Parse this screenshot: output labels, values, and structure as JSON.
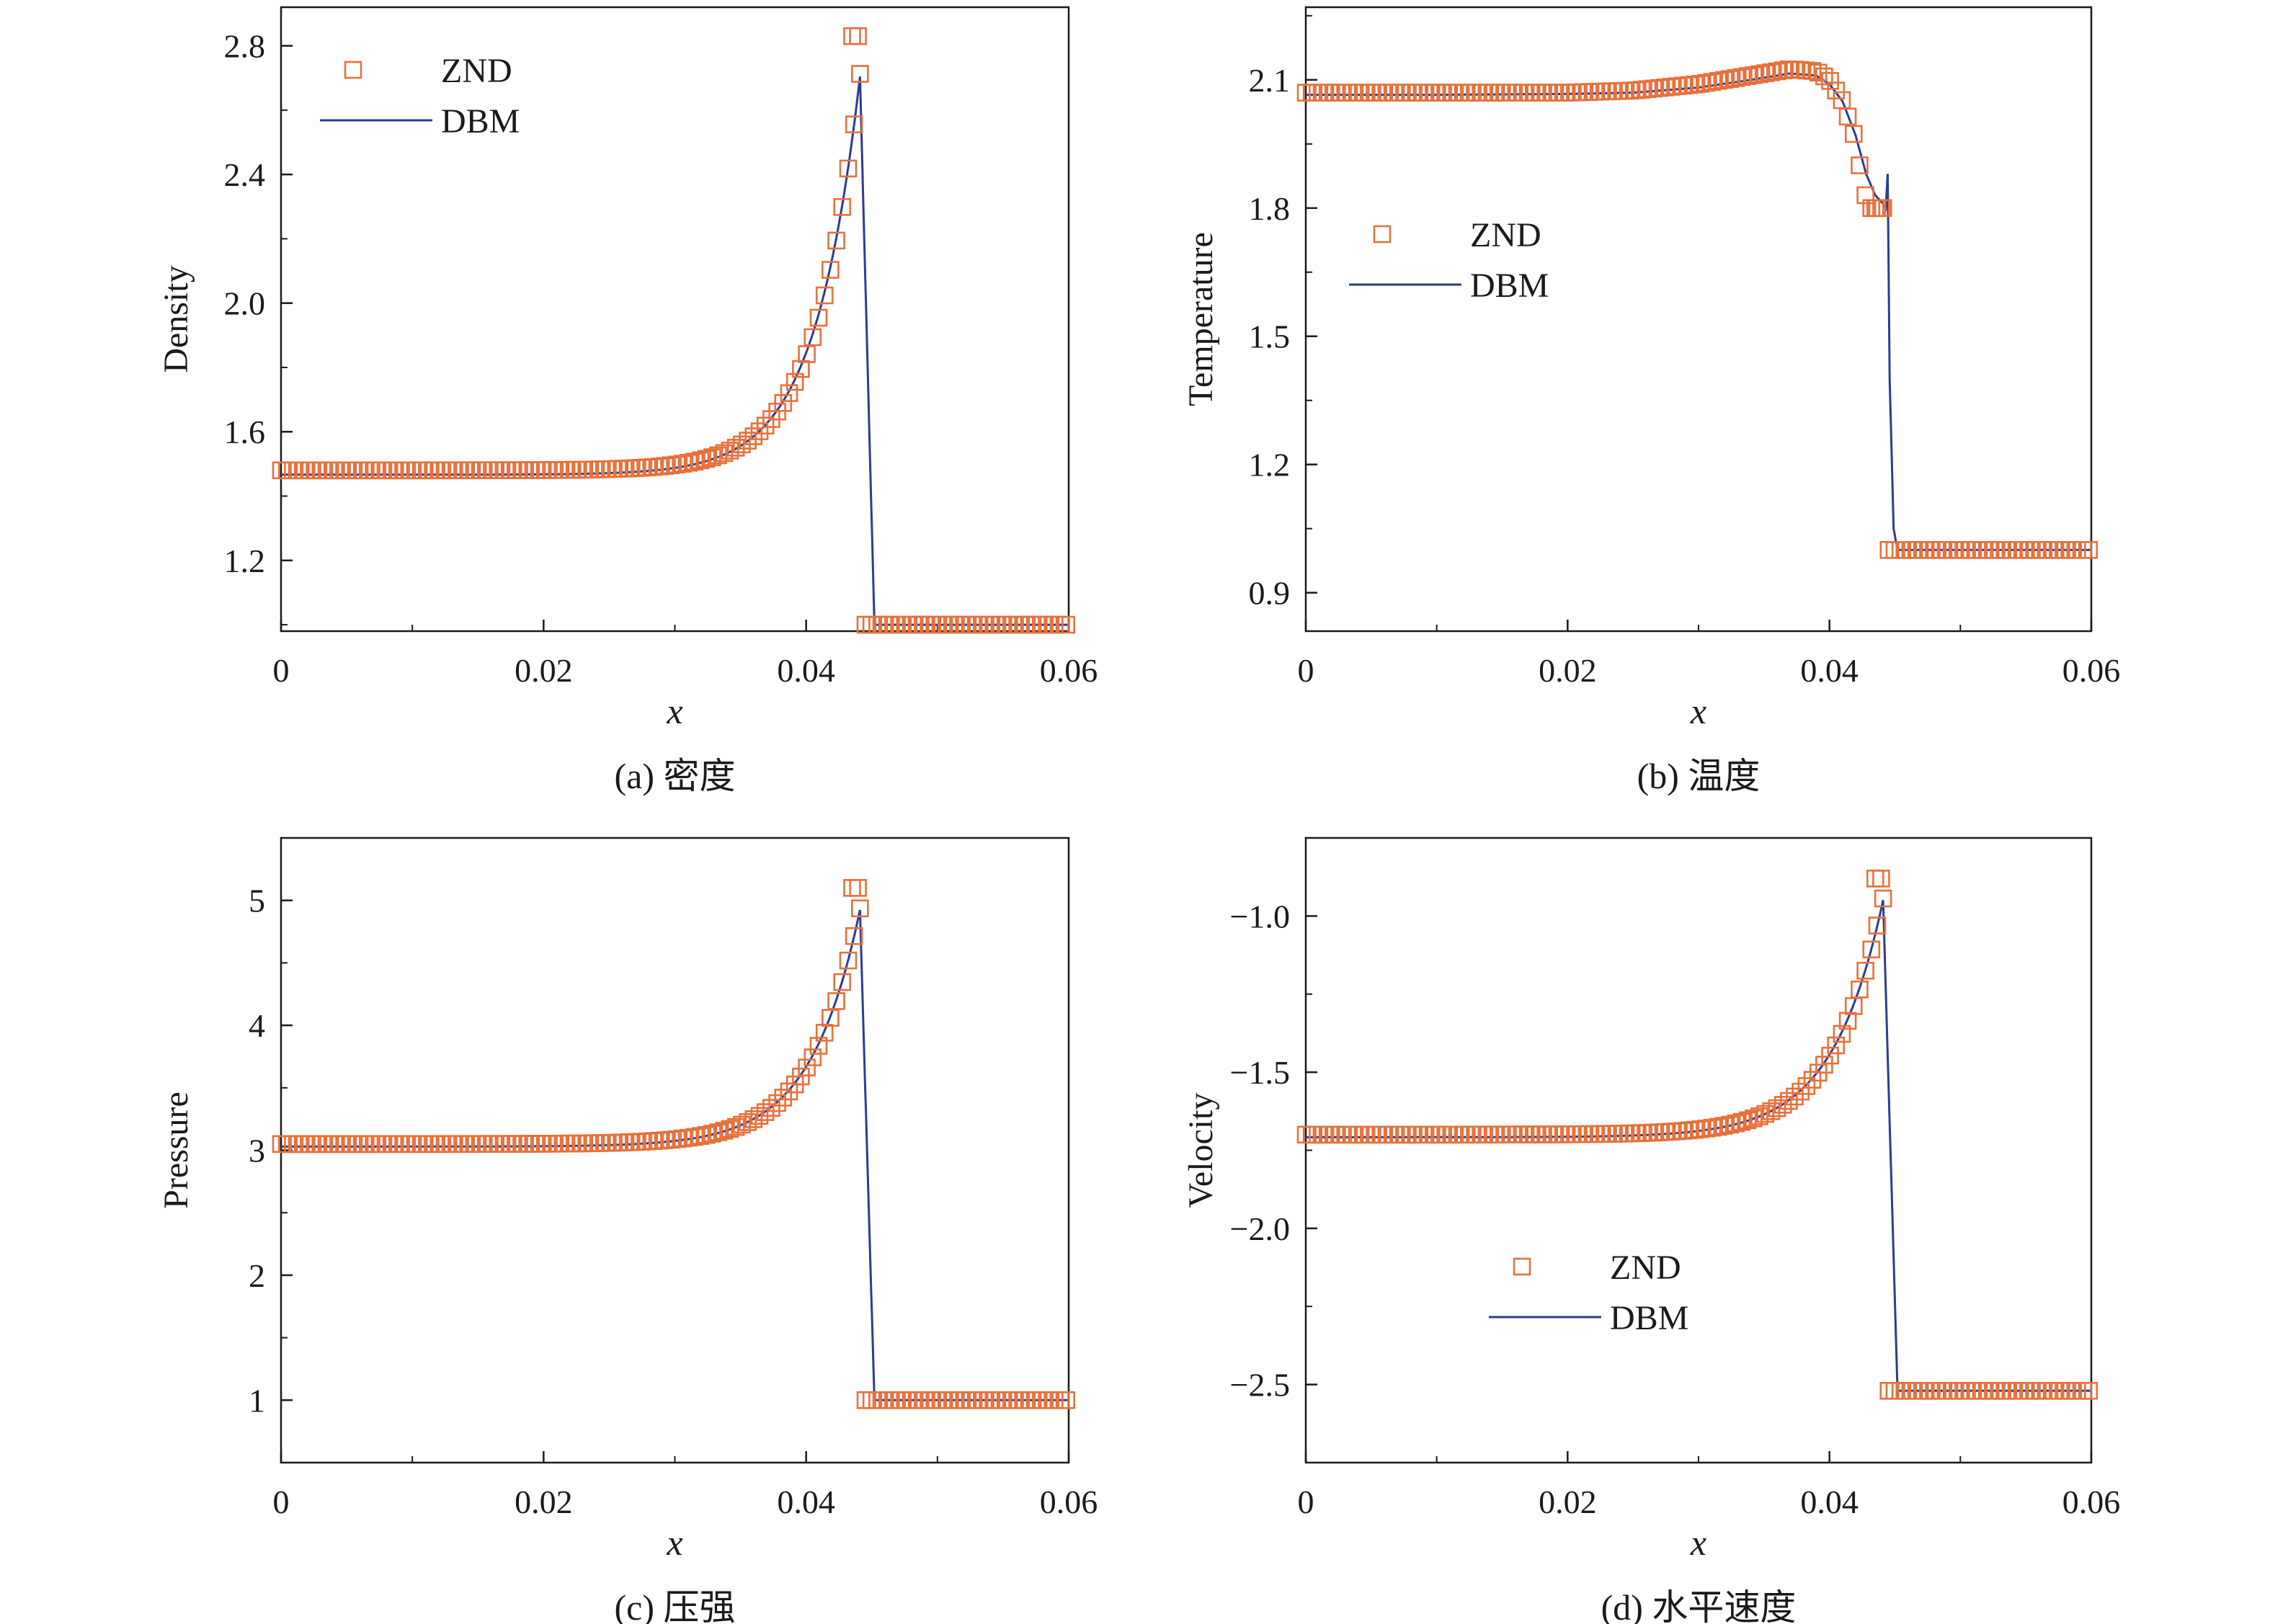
{
  "colors": {
    "znd": "#e8703a",
    "dbm": "#2b3b96",
    "axis": "#1a1a1a"
  },
  "legend": {
    "znd_label": "ZND",
    "dbm_label": "DBM"
  },
  "chart_data": [
    {
      "type": "line",
      "id": "a",
      "caption": "(a) 密度",
      "xlabel": "x",
      "ylabel": "Density",
      "xlim": [
        0,
        0.06
      ],
      "ylim": [
        0.98,
        2.92
      ],
      "xticks": [
        0,
        0.02,
        0.04,
        0.06
      ],
      "xtick_labels": [
        "0",
        "0.02",
        "0.04",
        "0.06"
      ],
      "yticks": [
        1.2,
        1.6,
        2.0,
        2.4,
        2.8
      ],
      "ytick_labels": [
        "1.2",
        "1.6",
        "2.0",
        "2.4",
        "2.8"
      ],
      "legend_position": "top-left",
      "profile": {
        "left": 1.48,
        "peak": 2.83,
        "right": 1.0,
        "front": 0.0444,
        "tau": 0.0033,
        "spike": 0
      },
      "series": [
        {
          "name": "ZND",
          "style": "open-square-markers"
        },
        {
          "name": "DBM",
          "style": "line"
        }
      ]
    },
    {
      "type": "line",
      "id": "b",
      "caption": "(b) 温度",
      "xlabel": "x",
      "ylabel": "Temperature",
      "xlim": [
        0,
        0.06
      ],
      "ylim": [
        0.81,
        2.27
      ],
      "xticks": [
        0,
        0.02,
        0.04,
        0.06
      ],
      "xtick_labels": [
        "0",
        "0.02",
        "0.04",
        "0.06"
      ],
      "yticks": [
        0.9,
        1.2,
        1.5,
        1.8,
        2.1
      ],
      "ytick_labels": [
        "0.9",
        "1.2",
        "1.5",
        "1.8",
        "2.1"
      ],
      "legend_position": "center-left",
      "znd_points": [
        [
          0,
          2.07
        ],
        [
          0.01,
          2.07
        ],
        [
          0.02,
          2.07
        ],
        [
          0.025,
          2.075
        ],
        [
          0.03,
          2.09
        ],
        [
          0.034,
          2.11
        ],
        [
          0.037,
          2.125
        ],
        [
          0.039,
          2.12
        ],
        [
          0.04,
          2.1
        ],
        [
          0.041,
          2.05
        ],
        [
          0.042,
          1.96
        ],
        [
          0.0425,
          1.86
        ],
        [
          0.043,
          1.8
        ],
        [
          0.0444,
          1.8
        ]
      ],
      "dbm_points": [
        [
          0,
          2.065
        ],
        [
          0.01,
          2.065
        ],
        [
          0.02,
          2.067
        ],
        [
          0.025,
          2.07
        ],
        [
          0.03,
          2.082
        ],
        [
          0.034,
          2.1
        ],
        [
          0.037,
          2.115
        ],
        [
          0.039,
          2.11
        ],
        [
          0.04,
          2.09
        ],
        [
          0.041,
          2.05
        ],
        [
          0.042,
          1.97
        ],
        [
          0.0428,
          1.88
        ],
        [
          0.0435,
          1.83
        ],
        [
          0.0441,
          1.81
        ],
        [
          0.0443,
          1.8
        ],
        [
          0.04445,
          1.88
        ],
        [
          0.0446,
          1.4
        ],
        [
          0.0449,
          1.05
        ],
        [
          0.0452,
          1.0
        ],
        [
          0.06,
          1.0
        ]
      ],
      "right_value": 1.0,
      "front": 0.0444,
      "series": [
        {
          "name": "ZND",
          "style": "open-square-markers"
        },
        {
          "name": "DBM",
          "style": "line"
        }
      ]
    },
    {
      "type": "line",
      "id": "c",
      "caption": "(c) 压强",
      "xlabel": "x",
      "ylabel": "Pressure",
      "xlim": [
        0,
        0.06
      ],
      "ylim": [
        0.5,
        5.5
      ],
      "xticks": [
        0,
        0.02,
        0.04,
        0.06
      ],
      "xtick_labels": [
        "0",
        "0.02",
        "0.04",
        "0.06"
      ],
      "yticks": [
        1,
        2,
        3,
        4,
        5
      ],
      "ytick_labels": [
        "1",
        "2",
        "3",
        "4",
        "5"
      ],
      "legend_position": "none",
      "profile": {
        "left": 3.05,
        "peak": 5.1,
        "right": 1.0,
        "front": 0.0444,
        "tau": 0.0036,
        "spike": 0
      },
      "series": [
        {
          "name": "ZND",
          "style": "open-square-markers"
        },
        {
          "name": "DBM",
          "style": "line"
        }
      ]
    },
    {
      "type": "line",
      "id": "d",
      "caption": "(d) 水平速度",
      "xlabel": "x",
      "ylabel": "Velocity",
      "xlim": [
        0,
        0.06
      ],
      "ylim": [
        -2.75,
        -0.75
      ],
      "xticks": [
        0,
        0.02,
        0.04,
        0.06
      ],
      "xtick_labels": [
        "0",
        "0.02",
        "0.04",
        "0.06"
      ],
      "yticks": [
        -2.5,
        -2.0,
        -1.5,
        -1.0
      ],
      "ytick_labels": [
        "−2.5",
        "−2.0",
        "−1.5",
        "−1.0"
      ],
      "legend_position": "bottom-center",
      "profile": {
        "left": -1.7,
        "peak": -0.88,
        "right": -2.52,
        "front": 0.0444,
        "tau": 0.0037,
        "spike": 0
      },
      "series": [
        {
          "name": "ZND",
          "style": "open-square-markers"
        },
        {
          "name": "DBM",
          "style": "line"
        }
      ]
    }
  ]
}
